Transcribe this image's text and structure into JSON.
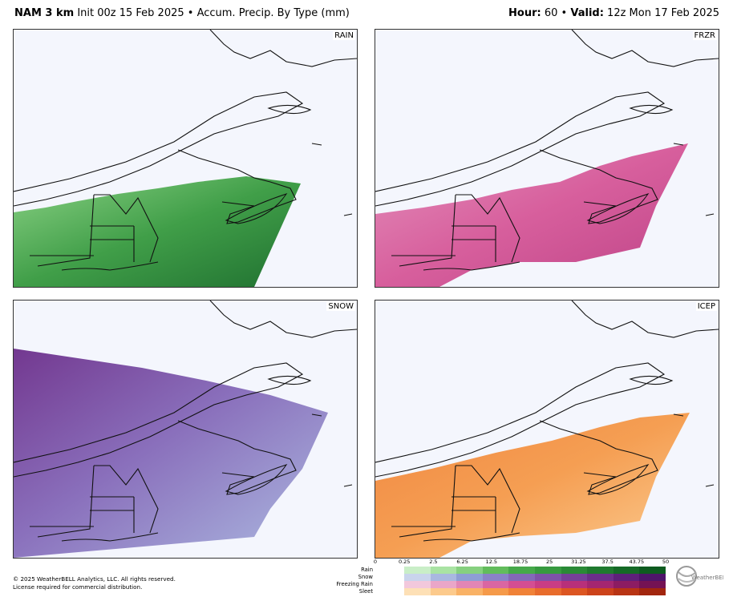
{
  "header": {
    "model": "NAM 3 km",
    "info": "Init 00z 15 Feb 2025 • Accum. Precip. By Type (mm)",
    "hour_label": "Hour:",
    "hour_value": "60",
    "valid_label": "Valid:",
    "valid_value": "12z Mon 17 Feb 2025"
  },
  "panels": [
    {
      "label": "RAIN",
      "color": "#2e9c45"
    },
    {
      "label": "FRZR",
      "color": "#d6488f"
    },
    {
      "label": "SNOW",
      "color": "#7c3fa0"
    },
    {
      "label": "ICEP",
      "color": "#f59a4a"
    }
  ],
  "legend": {
    "ticks": [
      "0",
      "0.25",
      "2.5",
      "6.25",
      "12.5",
      "18.75",
      "25",
      "31.25",
      "37.5",
      "43.75",
      "50"
    ],
    "rows": [
      {
        "label": "Rain",
        "colors": [
          "#c9eec7",
          "#a9e3a3",
          "#86d07f",
          "#62bc5c",
          "#46a94a",
          "#379a3f",
          "#2a8a36",
          "#1f7a2e",
          "#156a26",
          "#0d5b1f"
        ]
      },
      {
        "label": "Snow",
        "colors": [
          "#c9d4ec",
          "#a9b8e0",
          "#8e9ed4",
          "#8a82c8",
          "#8468b8",
          "#7e52a8",
          "#763f99",
          "#6c2e8a",
          "#5e207a",
          "#4e146a"
        ]
      },
      {
        "label": "Freezing Rain",
        "colors": [
          "#f2c8dc",
          "#eaa6c8",
          "#e286b5",
          "#da66a2",
          "#d44e92",
          "#c93d84",
          "#b8307a",
          "#a42670",
          "#8c1c62",
          "#741254"
        ]
      },
      {
        "label": "Sleet",
        "colors": [
          "#fde0b6",
          "#fcca8c",
          "#f9b266",
          "#f59a4a",
          "#f08238",
          "#e86c2c",
          "#dc5622",
          "#cc431a",
          "#b83414",
          "#a2260e"
        ]
      }
    ]
  },
  "footer": {
    "copyright": "© 2025 WeatherBELL Analytics, LLC. All rights reserved.",
    "license": "License required for commercial distribution."
  },
  "logo_text": "WeatherBELL"
}
